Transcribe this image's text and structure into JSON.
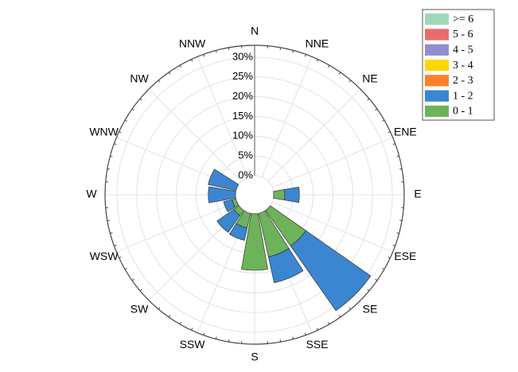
{
  "chart_data": {
    "type": "windrose",
    "categories": [
      "N",
      "NNE",
      "NE",
      "ENE",
      "E",
      "ESE",
      "SE",
      "SSE",
      "S",
      "SSW",
      "SW",
      "WSW",
      "W",
      "WNW",
      "NW",
      "NNW"
    ],
    "series": [
      {
        "name": "0 - 1",
        "color": "#6db35a",
        "values": [
          0,
          0,
          0,
          0,
          2.8,
          0,
          11,
          11.3,
          14.3,
          3.8,
          1.6,
          1,
          0,
          0,
          0,
          0
        ]
      },
      {
        "name": "1 - 2",
        "color": "#3a86d0",
        "values": [
          0,
          0,
          0,
          0,
          3.7,
          0,
          20,
          6.7,
          0,
          3.2,
          5.2,
          2.2,
          6.9,
          7.2,
          0,
          0
        ]
      },
      {
        "name": "2 - 3",
        "color": "#ff7f2a",
        "values": [
          0,
          0,
          0,
          0,
          0,
          0,
          0,
          0,
          0,
          0,
          0,
          0,
          0,
          0,
          0,
          0
        ]
      },
      {
        "name": "3 - 4",
        "color": "#ffd700",
        "values": [
          0,
          0,
          0,
          0,
          0,
          0,
          0,
          0,
          0,
          0,
          0,
          0,
          0,
          0,
          0,
          0
        ]
      },
      {
        "name": "4 - 5",
        "color": "#8f8fce",
        "values": [
          0,
          0,
          0,
          0,
          0,
          0,
          0,
          0,
          0,
          0,
          0,
          0,
          0,
          0,
          0,
          0
        ]
      },
      {
        "name": "5 - 6",
        "color": "#e86b6b",
        "values": [
          0,
          0,
          0,
          0,
          0,
          0,
          0,
          0,
          0,
          0,
          0,
          0,
          0,
          0,
          0,
          0
        ]
      },
      {
        "name": ">= 6",
        "color": "#9fd8b8",
        "values": [
          0,
          0,
          0,
          0,
          0,
          0,
          0,
          0,
          0,
          0,
          0,
          0,
          0,
          0,
          0,
          0
        ]
      }
    ],
    "rlim": [
      0,
      33
    ],
    "rticks": [
      {
        "value": 0,
        "label": "0%"
      },
      {
        "value": 5,
        "label": "5%"
      },
      {
        "value": 10,
        "label": "10%"
      },
      {
        "value": 15,
        "label": "15%"
      },
      {
        "value": 20,
        "label": "20%"
      },
      {
        "value": 25,
        "label": "25%"
      },
      {
        "value": 30,
        "label": "30%"
      }
    ],
    "grid": true,
    "legend": "upper right"
  }
}
